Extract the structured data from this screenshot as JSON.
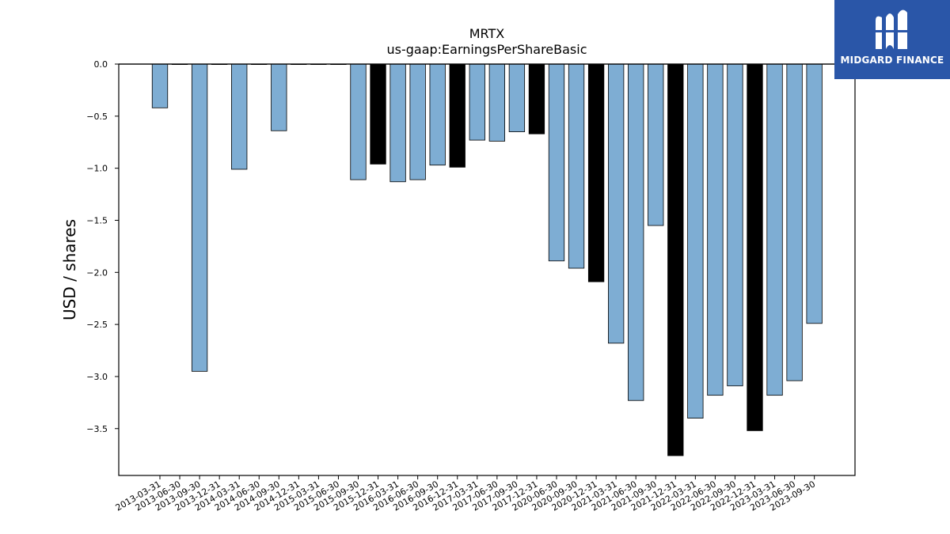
{
  "chart_data": {
    "type": "bar",
    "title": "MRTX",
    "subtitle": "us-gaap:EarningsPerShareBasic",
    "ylabel": "USD / shares",
    "xlabel": "",
    "ylim": [
      -3.95,
      0
    ],
    "yticks": [
      0.0,
      -0.5,
      -1.0,
      -1.5,
      -2.0,
      -2.5,
      -3.0,
      -3.5
    ],
    "grid": false,
    "colors": {
      "quarter": "#7eadd3",
      "annual": "#000000",
      "edge": "#000000"
    },
    "categories": [
      "2013-03-31",
      "2013-06-30",
      "2013-09-30",
      "2013-12-31",
      "2014-03-31",
      "2014-06-30",
      "2014-09-30",
      "2014-12-31",
      "2015-03-31",
      "2015-06-30",
      "2015-09-30",
      "2015-12-31",
      "2016-03-31",
      "2016-06-30",
      "2016-09-30",
      "2016-12-31",
      "2017-03-31",
      "2017-06-30",
      "2017-09-30",
      "2017-12-31",
      "2020-06-30",
      "2020-09-30",
      "2020-12-31",
      "2021-03-31",
      "2021-06-30",
      "2021-09-30",
      "2021-12-31",
      "2022-03-31",
      "2022-06-30",
      "2022-09-30",
      "2022-12-31",
      "2023-03-31",
      "2023-06-30",
      "2023-09-30"
    ],
    "values": [
      -0.42,
      0,
      -2.95,
      0,
      -1.01,
      0,
      -0.64,
      0,
      0,
      0,
      -1.11,
      -0.96,
      -1.13,
      -1.11,
      -0.97,
      -0.99,
      -0.73,
      -0.74,
      -0.65,
      -0.67,
      -1.89,
      -1.96,
      -2.09,
      -2.68,
      -3.23,
      -1.55,
      -3.76,
      -3.4,
      -3.18,
      -3.09,
      -3.52,
      -3.18,
      -3.04,
      -2.49
    ],
    "annual": [
      false,
      false,
      false,
      false,
      false,
      false,
      false,
      false,
      false,
      false,
      false,
      true,
      false,
      false,
      false,
      true,
      false,
      false,
      false,
      true,
      false,
      false,
      true,
      false,
      false,
      false,
      true,
      false,
      false,
      false,
      true,
      false,
      false,
      false
    ]
  },
  "logo": {
    "text": "MIDGARD FINANCE",
    "icon": "midgard-logo-icon",
    "background": "#2a56a8"
  }
}
